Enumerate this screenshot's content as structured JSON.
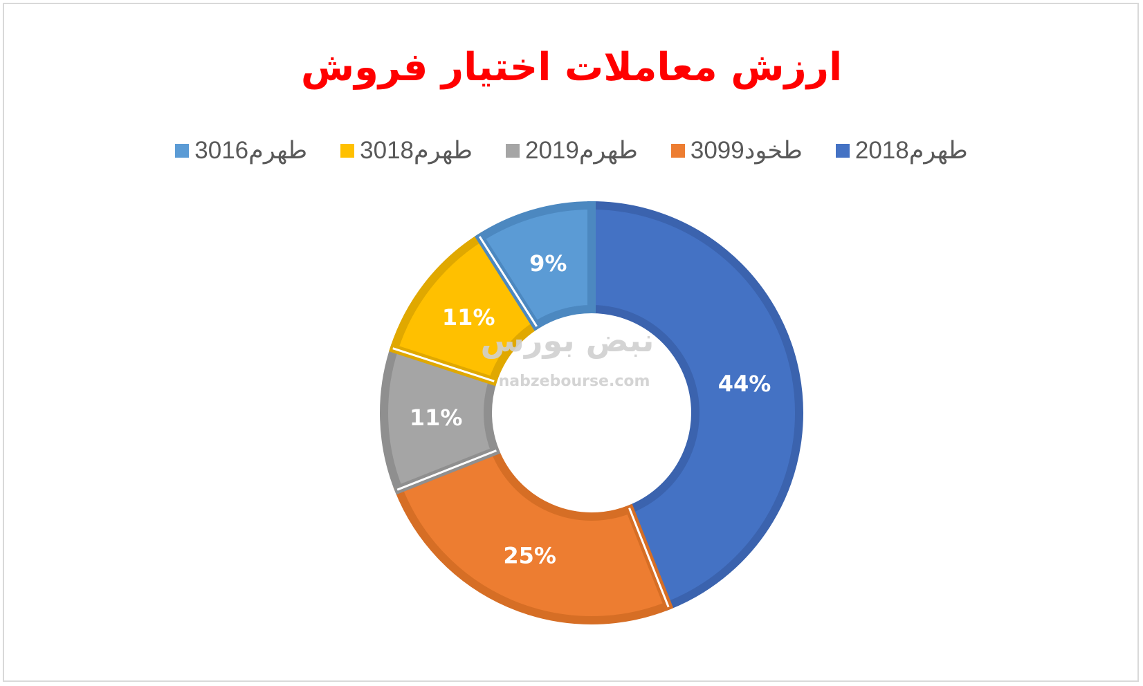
{
  "chart_data": {
    "type": "pie",
    "variant": "doughnut",
    "title": "ارزش معاملات اختیار فروش",
    "categories": [
      "طهرم2018",
      "طخود3099",
      "طهرم2019",
      "طهرم3018",
      "طهرم3016"
    ],
    "values": [
      44,
      25,
      11,
      11,
      9
    ],
    "unit": "%",
    "data_labels": [
      "44%",
      "25%",
      "11%",
      "11%",
      "9%"
    ],
    "colors": [
      "#4472C4",
      "#ED7D31",
      "#A5A5A5",
      "#FFC000",
      "#5B9BD5"
    ],
    "border_colors": [
      "#3B63AE",
      "#D66E25",
      "#8F8F8F",
      "#E0A800",
      "#4C88C0"
    ],
    "legend_position": "top"
  },
  "watermark": {
    "logo_text": "نبض بورس",
    "site": "nabzebourse.com"
  },
  "styles": {
    "title_color": "#FF0000",
    "legend_text_color": "#595959",
    "frame_border_color": "#D9D9D9"
  }
}
